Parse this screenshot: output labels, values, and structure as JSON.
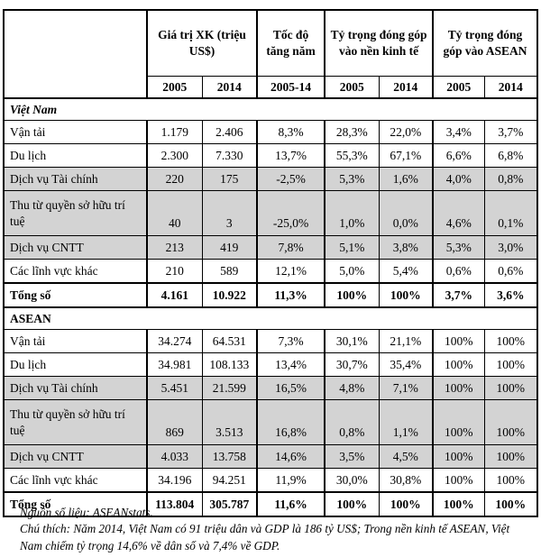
{
  "page": {
    "background_color": "#ffffff",
    "shaded_row_color": "#d3d3d3",
    "border_color": "#000000"
  },
  "table": {
    "header": {
      "corner": "",
      "groups": [
        {
          "label": "Giá trị XK (triệu US$)",
          "span": 2
        },
        {
          "label": "Tốc độ tăng năm",
          "span": 1
        },
        {
          "label": "Tỷ trọng đóng góp vào nền kinh tế",
          "span": 2
        },
        {
          "label": "Tỷ trọng đóng góp vào ASEAN",
          "span": 2
        }
      ],
      "years": [
        "2005",
        "2014",
        "2005-14",
        "2005",
        "2014",
        "2005",
        "2014"
      ]
    },
    "sections": [
      {
        "title": "Việt Nam",
        "title_style": "bold-italic",
        "rows": [
          {
            "label": "Vận tải",
            "shaded": false,
            "tall": false,
            "values": [
              "1.179",
              "2.406",
              "8,3%",
              "28,3%",
              "22,0%",
              "3,4%",
              "3,7%"
            ]
          },
          {
            "label": "Du lịch",
            "shaded": false,
            "tall": false,
            "values": [
              "2.300",
              "7.330",
              "13,7%",
              "55,3%",
              "67,1%",
              "6,6%",
              "6,8%"
            ]
          },
          {
            "label": "Dịch vụ Tài chính",
            "shaded": true,
            "tall": false,
            "values": [
              "220",
              "175",
              "-2,5%",
              "5,3%",
              "1,6%",
              "4,0%",
              "0,8%"
            ]
          },
          {
            "label": "Thu từ quyền sở hữu trí tuệ",
            "shaded": true,
            "tall": true,
            "values": [
              "40",
              "3",
              "-25,0%",
              "1,0%",
              "0,0%",
              "4,6%",
              "0,1%"
            ]
          },
          {
            "label": "Dịch vụ CNTT",
            "shaded": true,
            "tall": false,
            "values": [
              "213",
              "419",
              "7,8%",
              "5,1%",
              "3,8%",
              "5,3%",
              "3,0%"
            ]
          },
          {
            "label": "Các lĩnh vực khác",
            "shaded": false,
            "tall": false,
            "values": [
              "210",
              "589",
              "12,1%",
              "5,0%",
              "5,4%",
              "0,6%",
              "0,6%"
            ]
          }
        ],
        "total": {
          "label": "Tổng số",
          "values": [
            "4.161",
            "10.922",
            "11,3%",
            "100%",
            "100%",
            "3,7%",
            "3,6%"
          ]
        }
      },
      {
        "title": "ASEAN",
        "title_style": "bold",
        "rows": [
          {
            "label": "Vận tải",
            "shaded": false,
            "tall": false,
            "values": [
              "34.274",
              "64.531",
              "7,3%",
              "30,1%",
              "21,1%",
              "100%",
              "100%"
            ]
          },
          {
            "label": "Du lịch",
            "shaded": false,
            "tall": false,
            "values": [
              "34.981",
              "108.133",
              "13,4%",
              "30,7%",
              "35,4%",
              "100%",
              "100%"
            ]
          },
          {
            "label": "Dịch vụ Tài chính",
            "shaded": true,
            "tall": false,
            "values": [
              "5.451",
              "21.599",
              "16,5%",
              "4,8%",
              "7,1%",
              "100%",
              "100%"
            ]
          },
          {
            "label": "Thu từ quyền sở hữu trí tuệ",
            "shaded": true,
            "tall": true,
            "values": [
              "869",
              "3.513",
              "16,8%",
              "0,8%",
              "1,1%",
              "100%",
              "100%"
            ]
          },
          {
            "label": "Dịch vụ CNTT",
            "shaded": true,
            "tall": false,
            "values": [
              "4.033",
              "13.758",
              "14,6%",
              "3,5%",
              "4,5%",
              "100%",
              "100%"
            ]
          },
          {
            "label": "Các lĩnh vực khác",
            "shaded": false,
            "tall": false,
            "values": [
              "34.196",
              "94.251",
              "11,9%",
              "30,0%",
              "30,8%",
              "100%",
              "100%"
            ]
          }
        ],
        "total": {
          "label": "Tổng số",
          "values": [
            "113.804",
            "305.787",
            "11,6%",
            "100%",
            "100%",
            "100%",
            "100%"
          ]
        }
      }
    ],
    "notes": [
      "Nguồn số liệu: ASEANstats.",
      "Chú thích: Năm 2014, Việt Nam có 91 triệu dân và GDP là 186 tỷ US$; Trong nền kinh tế ASEAN, Việt Nam chiếm tỷ trọng 14,6% về dân số và 7,4% về GDP."
    ]
  }
}
